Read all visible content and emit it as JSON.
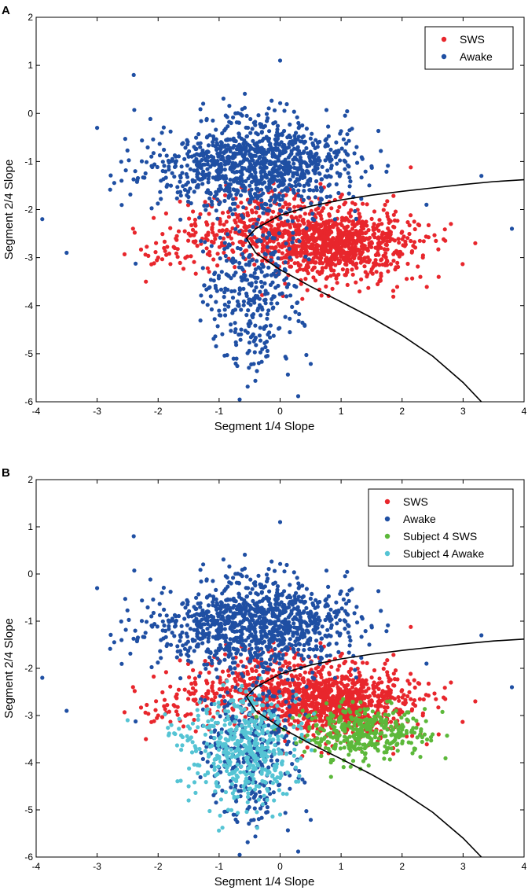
{
  "chart_data": [
    {
      "panel": "A",
      "type": "scatter",
      "title": "",
      "xlabel": "Segment 1/4 Slope",
      "ylabel": "Segment 2/4 Slope",
      "xlim": [
        -4,
        4
      ],
      "ylim": [
        -6,
        2
      ],
      "xticks": [
        -4,
        -3,
        -2,
        -1,
        0,
        1,
        2,
        3,
        4
      ],
      "yticks": [
        -6,
        -5,
        -4,
        -3,
        -2,
        -1,
        0,
        1,
        2
      ],
      "legend_position": "top-right",
      "series": [
        {
          "name": "SWS",
          "color": "#e8262c",
          "points": [
            [
              0.6,
              -2.6
            ],
            [
              1.0,
              -2.8
            ],
            [
              0.8,
              -2.4
            ],
            [
              1.3,
              -3.0
            ],
            [
              0.2,
              -2.5
            ],
            [
              1.6,
              -2.9
            ],
            [
              -0.3,
              -2.3
            ],
            [
              0.5,
              -3.1
            ],
            [
              1.1,
              -2.2
            ],
            [
              1.9,
              -3.2
            ],
            [
              -0.8,
              -2.6
            ],
            [
              2.3,
              -3.4
            ],
            [
              0.0,
              -2.0
            ],
            [
              1.4,
              -3.3
            ],
            [
              -1.5,
              -2.5
            ],
            [
              -2.0,
              -3.0
            ],
            [
              0.9,
              -1.8
            ],
            [
              2.6,
              -3.4
            ],
            [
              3.2,
              -2.7
            ],
            [
              -2.2,
              -3.5
            ],
            [
              2.8,
              -2.3
            ],
            [
              -0.5,
              -1.6
            ],
            [
              1.7,
              -2.5
            ],
            [
              0.3,
              -2.9
            ]
          ]
        },
        {
          "name": "Awake",
          "color": "#1f4fa3",
          "points": [
            [
              -0.5,
              -1.0
            ],
            [
              0.0,
              -1.1
            ],
            [
              -1.0,
              -1.2
            ],
            [
              0.5,
              -0.8
            ],
            [
              -0.3,
              -0.4
            ],
            [
              -1.5,
              -0.9
            ],
            [
              0.8,
              -1.3
            ],
            [
              -0.2,
              -1.6
            ],
            [
              -1.2,
              -0.5
            ],
            [
              0.3,
              -0.2
            ],
            [
              -0.6,
              -3.0
            ],
            [
              -0.4,
              -3.8
            ],
            [
              -0.2,
              -4.6
            ],
            [
              0.1,
              -5.1
            ],
            [
              -0.9,
              -4.2
            ],
            [
              0.4,
              -4.4
            ],
            [
              -2.4,
              0.8
            ],
            [
              0.0,
              1.1
            ],
            [
              -3.0,
              -0.3
            ],
            [
              -3.9,
              -2.2
            ],
            [
              -3.5,
              -2.9
            ],
            [
              3.3,
              -1.3
            ],
            [
              3.8,
              -2.4
            ],
            [
              2.4,
              -1.9
            ],
            [
              1.5,
              -1.1
            ],
            [
              -2.6,
              -1.4
            ]
          ]
        }
      ],
      "curve": {
        "name": "decision boundary",
        "color": "#000000",
        "points": [
          [
            4.0,
            -1.38
          ],
          [
            3.5,
            -1.42
          ],
          [
            3.0,
            -1.48
          ],
          [
            2.5,
            -1.55
          ],
          [
            2.0,
            -1.62
          ],
          [
            1.5,
            -1.7
          ],
          [
            1.0,
            -1.8
          ],
          [
            0.5,
            -1.93
          ],
          [
            0.0,
            -2.12
          ],
          [
            -0.4,
            -2.4
          ],
          [
            -0.55,
            -2.6
          ],
          [
            -0.4,
            -2.9
          ],
          [
            0.0,
            -3.25
          ],
          [
            0.5,
            -3.6
          ],
          [
            1.0,
            -3.92
          ],
          [
            1.5,
            -4.25
          ],
          [
            2.0,
            -4.62
          ],
          [
            2.5,
            -5.05
          ],
          [
            3.0,
            -5.6
          ],
          [
            3.3,
            -6.0
          ]
        ]
      }
    },
    {
      "panel": "B",
      "type": "scatter",
      "title": "",
      "xlabel": "Segment 1/4 Slope",
      "ylabel": "Segment 2/4 Slope",
      "xlim": [
        -4,
        4
      ],
      "ylim": [
        -6,
        2
      ],
      "xticks": [
        -4,
        -3,
        -2,
        -1,
        0,
        1,
        2,
        3,
        4
      ],
      "yticks": [
        -6,
        -5,
        -4,
        -3,
        -2,
        -1,
        0,
        1,
        2
      ],
      "legend_position": "top-right",
      "series": [
        {
          "name": "SWS",
          "color": "#e8262c",
          "points": [
            [
              0.6,
              -2.6
            ],
            [
              1.0,
              -2.8
            ],
            [
              0.8,
              -2.4
            ],
            [
              1.3,
              -3.0
            ],
            [
              0.2,
              -2.5
            ],
            [
              1.6,
              -2.9
            ],
            [
              -0.3,
              -2.3
            ],
            [
              0.5,
              -3.1
            ],
            [
              1.1,
              -2.2
            ],
            [
              1.9,
              -3.2
            ],
            [
              -0.8,
              -2.6
            ],
            [
              2.3,
              -3.4
            ],
            [
              0.0,
              -2.0
            ],
            [
              1.4,
              -3.3
            ],
            [
              -1.5,
              -2.5
            ],
            [
              -2.0,
              -3.0
            ],
            [
              0.9,
              -1.8
            ],
            [
              2.6,
              -3.4
            ],
            [
              3.2,
              -2.7
            ],
            [
              -2.2,
              -3.5
            ],
            [
              2.8,
              -2.3
            ],
            [
              -0.5,
              -1.6
            ],
            [
              1.7,
              -2.5
            ],
            [
              0.3,
              -2.9
            ]
          ]
        },
        {
          "name": "Awake",
          "color": "#1f4fa3",
          "points": [
            [
              -0.5,
              -1.0
            ],
            [
              0.0,
              -1.1
            ],
            [
              -1.0,
              -1.2
            ],
            [
              0.5,
              -0.8
            ],
            [
              -0.3,
              -0.4
            ],
            [
              -1.5,
              -0.9
            ],
            [
              0.8,
              -1.3
            ],
            [
              -0.2,
              -1.6
            ],
            [
              -1.2,
              -0.5
            ],
            [
              0.3,
              -0.2
            ],
            [
              -2.4,
              0.8
            ],
            [
              0.0,
              1.1
            ],
            [
              -3.0,
              -0.3
            ],
            [
              -3.9,
              -2.2
            ],
            [
              -3.5,
              -2.9
            ],
            [
              3.3,
              -1.3
            ],
            [
              3.8,
              -2.4
            ],
            [
              2.4,
              -1.9
            ],
            [
              1.5,
              -1.1
            ],
            [
              -2.6,
              -1.4
            ]
          ]
        },
        {
          "name": "Subject 4 SWS",
          "color": "#5cb83a",
          "points": [
            [
              1.2,
              -3.3
            ],
            [
              1.5,
              -3.5
            ],
            [
              0.8,
              -3.4
            ],
            [
              1.8,
              -3.6
            ],
            [
              1.0,
              -3.1
            ],
            [
              1.4,
              -3.8
            ],
            [
              2.0,
              -3.3
            ],
            [
              0.6,
              -3.2
            ],
            [
              1.6,
              -3.0
            ],
            [
              2.2,
              -3.7
            ],
            [
              0.9,
              -3.7
            ],
            [
              2.5,
              -3.4
            ],
            [
              1.3,
              -3.6
            ],
            [
              1.9,
              -2.9
            ],
            [
              0.4,
              -3.5
            ]
          ]
        },
        {
          "name": "Subject 4 Awake",
          "color": "#55c4d4",
          "points": [
            [
              -0.8,
              -3.3
            ],
            [
              -0.5,
              -3.6
            ],
            [
              -1.0,
              -3.9
            ],
            [
              -0.3,
              -4.2
            ],
            [
              -0.6,
              -4.5
            ],
            [
              -0.1,
              -4.8
            ],
            [
              0.0,
              -5.1
            ],
            [
              -0.9,
              -3.1
            ],
            [
              -1.2,
              -3.6
            ],
            [
              -0.4,
              -3.9
            ],
            [
              -0.2,
              -4.6
            ],
            [
              -1.5,
              -4.5
            ],
            [
              -1.5,
              -4.8
            ],
            [
              -2.5,
              -3.1
            ],
            [
              0.3,
              -4.4
            ],
            [
              -0.7,
              -2.8
            ]
          ]
        }
      ],
      "curve": {
        "name": "decision boundary",
        "color": "#000000",
        "points": [
          [
            4.0,
            -1.38
          ],
          [
            3.5,
            -1.42
          ],
          [
            3.0,
            -1.48
          ],
          [
            2.5,
            -1.55
          ],
          [
            2.0,
            -1.62
          ],
          [
            1.5,
            -1.7
          ],
          [
            1.0,
            -1.8
          ],
          [
            0.5,
            -1.93
          ],
          [
            0.0,
            -2.12
          ],
          [
            -0.4,
            -2.4
          ],
          [
            -0.55,
            -2.6
          ],
          [
            -0.4,
            -2.9
          ],
          [
            0.0,
            -3.25
          ],
          [
            0.5,
            -3.6
          ],
          [
            1.0,
            -3.92
          ],
          [
            1.5,
            -4.25
          ],
          [
            2.0,
            -4.62
          ],
          [
            2.5,
            -5.05
          ],
          [
            3.0,
            -5.6
          ],
          [
            3.3,
            -6.0
          ]
        ]
      }
    }
  ]
}
